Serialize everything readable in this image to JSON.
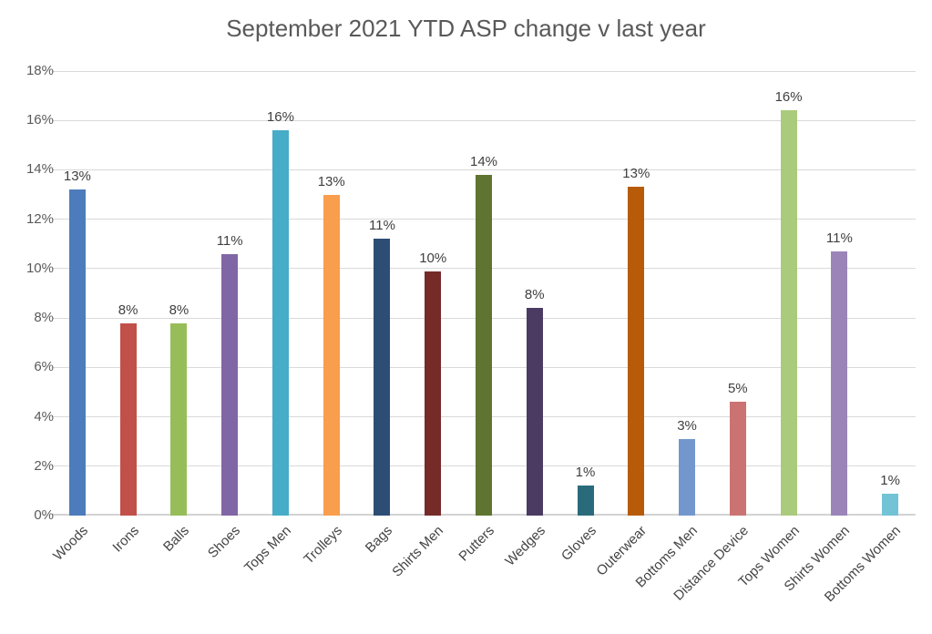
{
  "chart_data": {
    "type": "bar",
    "title": "September 2021 YTD ASP change v last year",
    "xlabel": "",
    "ylabel": "",
    "categories": [
      "Woods",
      "Irons",
      "Balls",
      "Shoes",
      "Tops Men",
      "Trolleys",
      "Bags",
      "Shirts Men",
      "Putters",
      "Wedges",
      "Gloves",
      "Outerwear",
      "Bottoms Men",
      "Distance Device",
      "Tops Women",
      "Shirts Women",
      "Bottoms Women"
    ],
    "values": [
      13.2,
      7.8,
      7.8,
      10.6,
      15.6,
      13.0,
      11.2,
      9.9,
      13.8,
      8.4,
      1.2,
      13.3,
      3.1,
      4.6,
      16.4,
      10.7,
      0.9
    ],
    "data_labels": [
      "13%",
      "8%",
      "8%",
      "11%",
      "16%",
      "13%",
      "11%",
      "10%",
      "14%",
      "8%",
      "1%",
      "13%",
      "3%",
      "5%",
      "16%",
      "11%",
      "1%"
    ],
    "bar_colors": [
      "#4C7CBB",
      "#C2504A",
      "#97BD58",
      "#8166A5",
      "#47ACC7",
      "#F99E4C",
      "#2E4D74",
      "#752B28",
      "#5F7431",
      "#4B3B63",
      "#2A6B7B",
      "#B75B09",
      "#7397CD",
      "#CB7372",
      "#AACB7C",
      "#9B85B8",
      "#73C3D6"
    ],
    "ylim": [
      0,
      18
    ],
    "ytick_step": 2,
    "ytick_labels": [
      "0%",
      "2%",
      "4%",
      "6%",
      "8%",
      "10%",
      "12%",
      "14%",
      "16%",
      "18%"
    ],
    "grid": true,
    "legend": false
  },
  "colors": {
    "background": "#ffffff",
    "title_text": "#595959",
    "axis_text": "#595959",
    "x_axis_text": "#444444",
    "data_label_text": "#404040",
    "gridline": "#d9d9d9",
    "axis_line": "#d3d3d3"
  }
}
